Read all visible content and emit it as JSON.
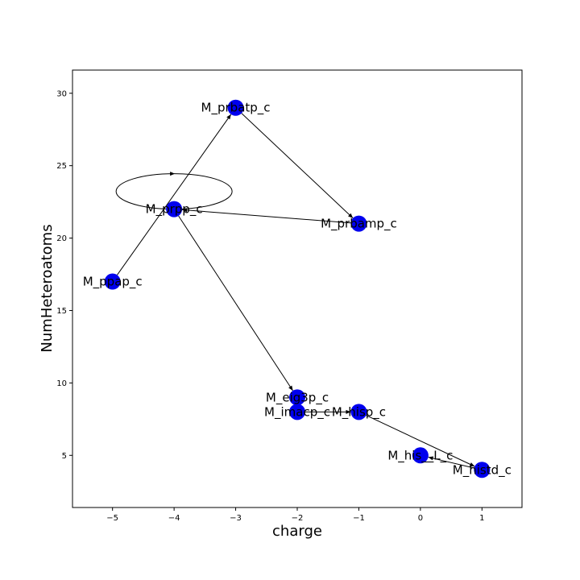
{
  "chart_data": {
    "type": "scatter",
    "title": "",
    "xlabel": "charge",
    "ylabel": "NumHeteroatoms",
    "xlim": [
      -5.65,
      1.65
    ],
    "ylim": [
      1.4,
      31.6
    ],
    "xticks": [
      -5,
      -4,
      -3,
      -2,
      -1,
      0,
      1
    ],
    "yticks": [
      5,
      10,
      15,
      20,
      25,
      30
    ],
    "grid": false,
    "node_color": "#0000ee",
    "edge_color": "#000000",
    "nodes": [
      {
        "id": "n1",
        "label": "M_prbatp_c",
        "x": -3,
        "y": 29
      },
      {
        "id": "n2",
        "label": "M_prpp_c",
        "x": -4,
        "y": 22
      },
      {
        "id": "n3",
        "label": "M_prbamp_c",
        "x": -1,
        "y": 21
      },
      {
        "id": "n4",
        "label": "M_ppap_c",
        "x": -5,
        "y": 17
      },
      {
        "id": "n5",
        "label": "M_eig3p_c",
        "x": -2,
        "y": 9
      },
      {
        "id": "n6",
        "label": "M_imacp_c",
        "x": -2,
        "y": 8
      },
      {
        "id": "n7",
        "label": "M_hisp_c",
        "x": -1,
        "y": 8
      },
      {
        "id": "n8",
        "label": "M_his__L_c",
        "x": 0,
        "y": 5
      },
      {
        "id": "n9",
        "label": "M_histd_c",
        "x": 1,
        "y": 4
      }
    ],
    "edges": [
      {
        "from": "n4",
        "to": "n1"
      },
      {
        "from": "n1",
        "to": "n3"
      },
      {
        "from": "n3",
        "to": "n2"
      },
      {
        "from": "n2",
        "to": "n5"
      },
      {
        "from": "n6",
        "to": "n7"
      },
      {
        "from": "n7",
        "to": "n9"
      },
      {
        "from": "n9",
        "to": "n8"
      },
      {
        "from": "n2",
        "to": "n2"
      }
    ]
  }
}
